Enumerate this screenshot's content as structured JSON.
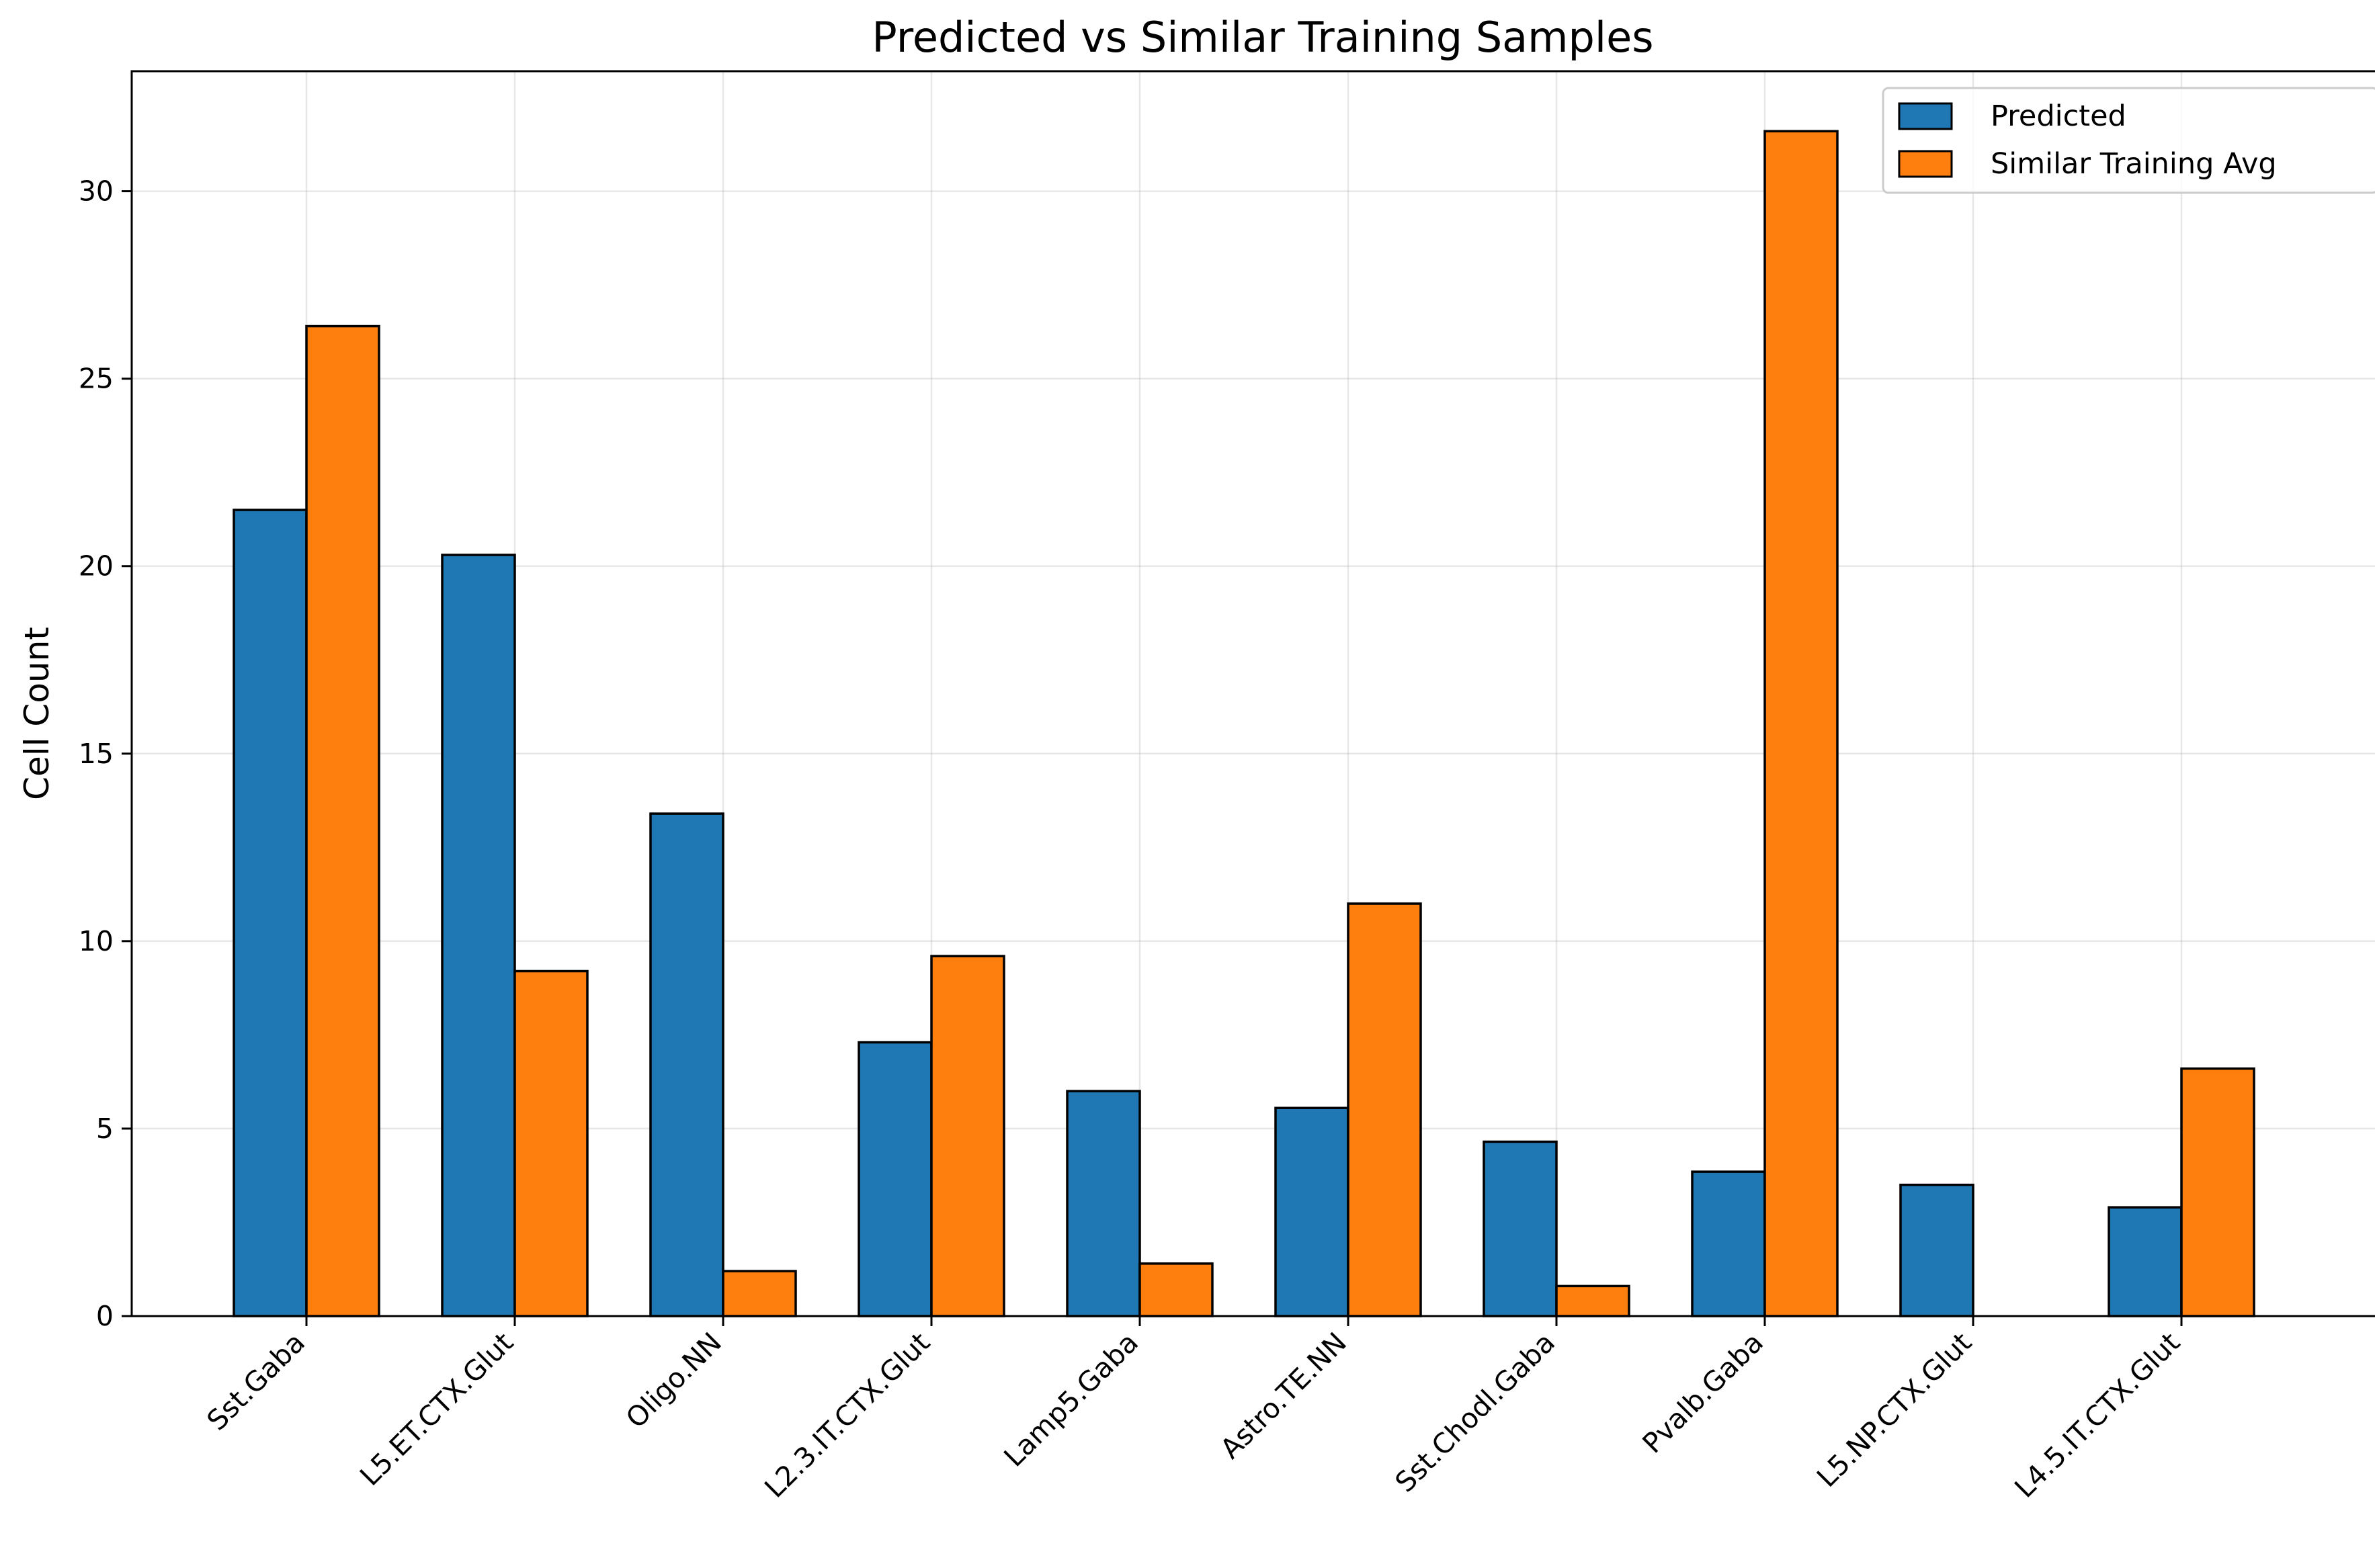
{
  "chart_data": {
    "type": "bar",
    "title": "Predicted vs Similar Training Samples",
    "xlabel": "",
    "ylabel": "Cell Count",
    "ylim": [
      0,
      33.2
    ],
    "yticks": [
      0,
      5,
      10,
      15,
      20,
      25,
      30
    ],
    "grid": true,
    "legend_position": "top-right",
    "categories": [
      "Sst.Gaba",
      "L5.ET.CTX.Glut",
      "Oligo.NN",
      "L2.3.IT.CTX.Glut",
      "Lamp5.Gaba",
      "Astro.TE.NN",
      "Sst.Chodl.Gaba",
      "Pvalb.Gaba",
      "L5.NP.CTX.Glut",
      "L4.5.IT.CTX.Glut"
    ],
    "series": [
      {
        "name": "Predicted",
        "color": "#1f77b4",
        "values": [
          21.5,
          20.3,
          13.4,
          7.3,
          6.0,
          5.55,
          4.65,
          3.85,
          3.5,
          2.9
        ]
      },
      {
        "name": "Similar Training Avg",
        "color": "#ff7f0e",
        "values": [
          26.4,
          9.2,
          1.2,
          9.6,
          1.4,
          11.0,
          0.8,
          31.6,
          0.0,
          6.6
        ]
      }
    ]
  }
}
